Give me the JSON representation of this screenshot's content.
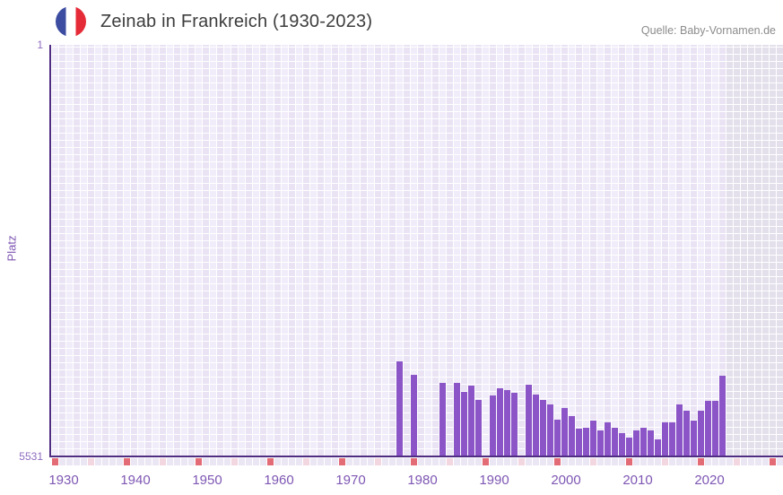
{
  "header": {
    "title": "Zeinab in Frankreich (1930-2023)",
    "source": "Quelle: Baby-Vornamen.de",
    "flag_icon": "france-flag-icon",
    "flag_colors": [
      "#3c4da1",
      "#ffffff",
      "#e52b38"
    ]
  },
  "chart_data": {
    "type": "bar",
    "title": "Zeinab in Frankreich (1930-2023)",
    "ylabel": "Platz",
    "y_axis": {
      "top_label": "1",
      "bottom_label": "5531",
      "min": 1,
      "max": 5531,
      "inverted": true
    },
    "x_axis": {
      "start": 1930,
      "end": 2030,
      "data_end": 2023,
      "tick_years": [
        1930,
        1940,
        1950,
        1960,
        1970,
        1980,
        1990,
        2000,
        2010,
        2020
      ],
      "decade_marker_color": "#e26b76",
      "half_decade_marker_color": "#f3d7e0"
    },
    "bars": [
      {
        "year": 1978,
        "rank": 4254
      },
      {
        "year": 1980,
        "rank": 4435
      },
      {
        "year": 1984,
        "rank": 4543
      },
      {
        "year": 1986,
        "rank": 4543
      },
      {
        "year": 1987,
        "rank": 4663
      },
      {
        "year": 1988,
        "rank": 4579
      },
      {
        "year": 1989,
        "rank": 4771
      },
      {
        "year": 1991,
        "rank": 4711
      },
      {
        "year": 1992,
        "rank": 4615
      },
      {
        "year": 1993,
        "rank": 4639
      },
      {
        "year": 1994,
        "rank": 4675
      },
      {
        "year": 1996,
        "rank": 4567
      },
      {
        "year": 1997,
        "rank": 4699
      },
      {
        "year": 1998,
        "rank": 4771
      },
      {
        "year": 1999,
        "rank": 4832
      },
      {
        "year": 2000,
        "rank": 5036
      },
      {
        "year": 2001,
        "rank": 4880
      },
      {
        "year": 2002,
        "rank": 4988
      },
      {
        "year": 2003,
        "rank": 5157
      },
      {
        "year": 2004,
        "rank": 5145
      },
      {
        "year": 2005,
        "rank": 5048
      },
      {
        "year": 2006,
        "rank": 5181
      },
      {
        "year": 2007,
        "rank": 5072
      },
      {
        "year": 2008,
        "rank": 5145
      },
      {
        "year": 2009,
        "rank": 5218
      },
      {
        "year": 2010,
        "rank": 5278
      },
      {
        "year": 2011,
        "rank": 5181
      },
      {
        "year": 2012,
        "rank": 5145
      },
      {
        "year": 2013,
        "rank": 5181
      },
      {
        "year": 2014,
        "rank": 5302
      },
      {
        "year": 2015,
        "rank": 5072
      },
      {
        "year": 2016,
        "rank": 5072
      },
      {
        "year": 2017,
        "rank": 4832
      },
      {
        "year": 2018,
        "rank": 4916
      },
      {
        "year": 2019,
        "rank": 5048
      },
      {
        "year": 2020,
        "rank": 4916
      },
      {
        "year": 2021,
        "rank": 4783
      },
      {
        "year": 2022,
        "rank": 4783
      },
      {
        "year": 2023,
        "rank": 4447
      }
    ],
    "colors": {
      "bar": "#8b55c7",
      "axis_line": "#4f2d82",
      "grid_cell": "#f1ecf9",
      "future_zone": "#e3dfeb",
      "tick_text": "#7e57b3"
    },
    "legend": "none",
    "grid": "on"
  }
}
